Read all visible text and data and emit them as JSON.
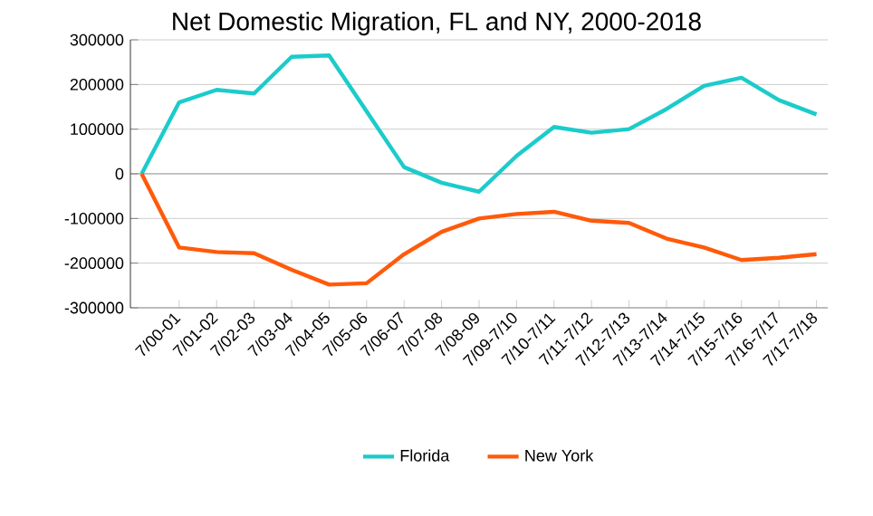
{
  "chart_data": {
    "type": "line",
    "title": "Net Domestic Migration, FL and NY, 2000-2018",
    "categories": [
      null,
      "7/00-01",
      "7/01-02",
      "7/02-03",
      "7/03-04",
      "7/04-05",
      "7/05-06",
      "7/06-07",
      "7/07-08",
      "7/08-09",
      "7/09-7/10",
      "7/10-7/11",
      "7/11-7/12",
      "7/12-7/13",
      "7/13-7/14",
      "7/14-7/15",
      "7/15-7/16",
      "7/16-7/17",
      "7/17-7/18"
    ],
    "series": [
      {
        "name": "Florida",
        "color": "#1ccbcb",
        "values": [
          0,
          160000,
          188000,
          180000,
          262000,
          265000,
          140000,
          15000,
          -20000,
          -40000,
          40000,
          105000,
          92000,
          100000,
          145000,
          197000,
          215000,
          165000,
          133000
        ]
      },
      {
        "name": "New York",
        "color": "#ff5a0a",
        "values": [
          0,
          -165000,
          -175000,
          -178000,
          -215000,
          -248000,
          -245000,
          -180000,
          -130000,
          -100000,
          -90000,
          -85000,
          -105000,
          -110000,
          -145000,
          -165000,
          -193000,
          -188000,
          -180000
        ]
      }
    ],
    "ylim": [
      -300000,
      300000
    ],
    "yticks": [
      -300000,
      -200000,
      -100000,
      0,
      100000,
      200000,
      300000
    ],
    "grid": "y",
    "legend": "bottom",
    "marker": "none",
    "line_style": "solid"
  }
}
